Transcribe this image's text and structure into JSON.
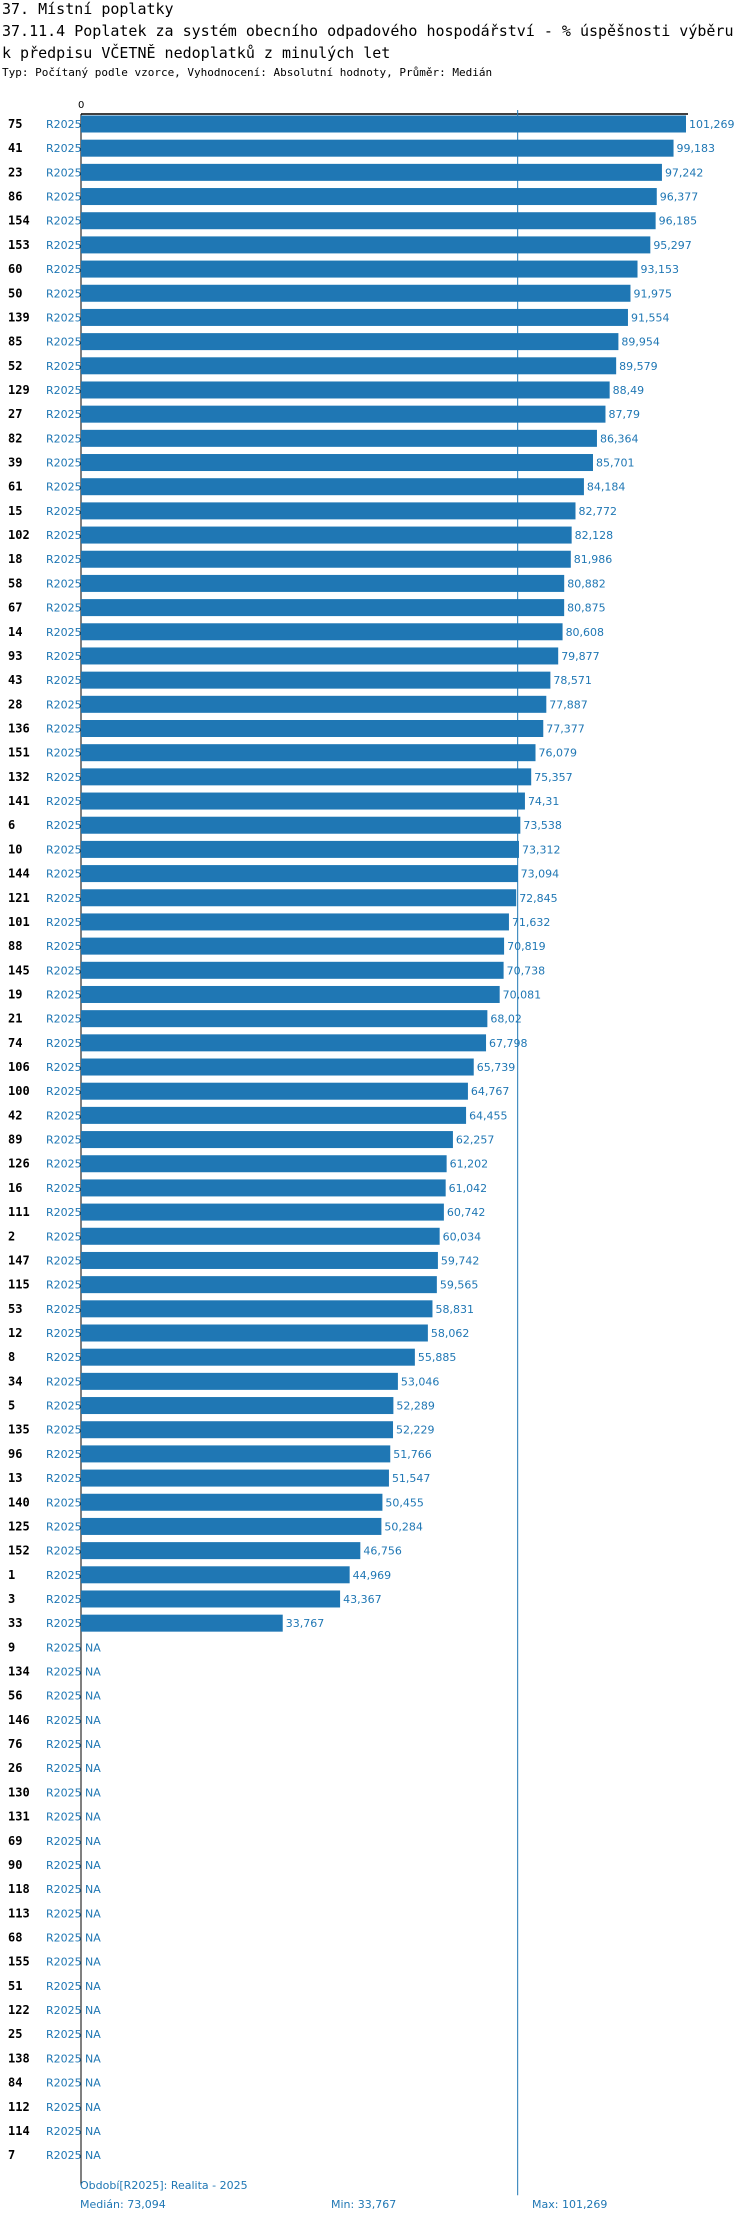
{
  "header": {
    "section": "37. Místní poplatky",
    "title": "37.11.4 Poplatek za systém obecního odpadového hospodářství  - % úspěšnosti výběru k předpisu VČETNĚ nedoplatků z minulých let",
    "subtitle": "Typ: Počítaný podle vzorce, Vyhodnocení: Absolutní hodnoty, Průměr: Medián"
  },
  "colors": {
    "bar": "#1f77b4",
    "text_blue": "#1f77b4",
    "axis": "#000000",
    "median_line": "#1f77b4"
  },
  "footer": {
    "period": "Období[R2025]: Realita - 2025",
    "median": "Medián: 73,094",
    "min": "Min: 33,767",
    "max": "Max: 101,269"
  },
  "chart_data": {
    "type": "bar",
    "orientation": "horizontal",
    "title": "37.11.4 Poplatek za systém obecního odpadového hospodářství  - % úspěšnosti výběru k předpisu VČETNĚ nedoplatků z minulých let",
    "axis_zero_label": "0",
    "xlim": [
      0,
      101.269
    ],
    "median": 73.094,
    "period_label": "R2025",
    "na_label": "NA",
    "rows": [
      {
        "id": "75",
        "value": 101.269,
        "label": "101,269"
      },
      {
        "id": "41",
        "value": 99.183,
        "label": "99,183"
      },
      {
        "id": "23",
        "value": 97.242,
        "label": "97,242"
      },
      {
        "id": "86",
        "value": 96.377,
        "label": "96,377"
      },
      {
        "id": "154",
        "value": 96.185,
        "label": "96,185"
      },
      {
        "id": "153",
        "value": 95.297,
        "label": "95,297"
      },
      {
        "id": "60",
        "value": 93.153,
        "label": "93,153"
      },
      {
        "id": "50",
        "value": 91.975,
        "label": "91,975"
      },
      {
        "id": "139",
        "value": 91.554,
        "label": "91,554"
      },
      {
        "id": "85",
        "value": 89.954,
        "label": "89,954"
      },
      {
        "id": "52",
        "value": 89.579,
        "label": "89,579"
      },
      {
        "id": "129",
        "value": 88.49,
        "label": "88,49"
      },
      {
        "id": "27",
        "value": 87.79,
        "label": "87,79"
      },
      {
        "id": "82",
        "value": 86.364,
        "label": "86,364"
      },
      {
        "id": "39",
        "value": 85.701,
        "label": "85,701"
      },
      {
        "id": "61",
        "value": 84.184,
        "label": "84,184"
      },
      {
        "id": "15",
        "value": 82.772,
        "label": "82,772"
      },
      {
        "id": "102",
        "value": 82.128,
        "label": "82,128"
      },
      {
        "id": "18",
        "value": 81.986,
        "label": "81,986"
      },
      {
        "id": "58",
        "value": 80.882,
        "label": "80,882"
      },
      {
        "id": "67",
        "value": 80.875,
        "label": "80,875"
      },
      {
        "id": "14",
        "value": 80.608,
        "label": "80,608"
      },
      {
        "id": "93",
        "value": 79.877,
        "label": "79,877"
      },
      {
        "id": "43",
        "value": 78.571,
        "label": "78,571"
      },
      {
        "id": "28",
        "value": 77.887,
        "label": "77,887"
      },
      {
        "id": "136",
        "value": 77.377,
        "label": "77,377"
      },
      {
        "id": "151",
        "value": 76.079,
        "label": "76,079"
      },
      {
        "id": "132",
        "value": 75.357,
        "label": "75,357"
      },
      {
        "id": "141",
        "value": 74.31,
        "label": "74,31"
      },
      {
        "id": "6",
        "value": 73.538,
        "label": "73,538"
      },
      {
        "id": "10",
        "value": 73.312,
        "label": "73,312"
      },
      {
        "id": "144",
        "value": 73.094,
        "label": "73,094"
      },
      {
        "id": "121",
        "value": 72.845,
        "label": "72,845"
      },
      {
        "id": "101",
        "value": 71.632,
        "label": "71,632"
      },
      {
        "id": "88",
        "value": 70.819,
        "label": "70,819"
      },
      {
        "id": "145",
        "value": 70.738,
        "label": "70,738"
      },
      {
        "id": "19",
        "value": 70.081,
        "label": "70,081"
      },
      {
        "id": "21",
        "value": 68.02,
        "label": "68,02"
      },
      {
        "id": "74",
        "value": 67.798,
        "label": "67,798"
      },
      {
        "id": "106",
        "value": 65.739,
        "label": "65,739"
      },
      {
        "id": "100",
        "value": 64.767,
        "label": "64,767"
      },
      {
        "id": "42",
        "value": 64.455,
        "label": "64,455"
      },
      {
        "id": "89",
        "value": 62.257,
        "label": "62,257"
      },
      {
        "id": "126",
        "value": 61.202,
        "label": "61,202"
      },
      {
        "id": "16",
        "value": 61.042,
        "label": "61,042"
      },
      {
        "id": "111",
        "value": 60.742,
        "label": "60,742"
      },
      {
        "id": "2",
        "value": 60.034,
        "label": "60,034"
      },
      {
        "id": "147",
        "value": 59.742,
        "label": "59,742"
      },
      {
        "id": "115",
        "value": 59.565,
        "label": "59,565"
      },
      {
        "id": "53",
        "value": 58.831,
        "label": "58,831"
      },
      {
        "id": "12",
        "value": 58.062,
        "label": "58,062"
      },
      {
        "id": "8",
        "value": 55.885,
        "label": "55,885"
      },
      {
        "id": "34",
        "value": 53.046,
        "label": "53,046"
      },
      {
        "id": "5",
        "value": 52.289,
        "label": "52,289"
      },
      {
        "id": "135",
        "value": 52.229,
        "label": "52,229"
      },
      {
        "id": "96",
        "value": 51.766,
        "label": "51,766"
      },
      {
        "id": "13",
        "value": 51.547,
        "label": "51,547"
      },
      {
        "id": "140",
        "value": 50.455,
        "label": "50,455"
      },
      {
        "id": "125",
        "value": 50.284,
        "label": "50,284"
      },
      {
        "id": "152",
        "value": 46.756,
        "label": "46,756"
      },
      {
        "id": "1",
        "value": 44.969,
        "label": "44,969"
      },
      {
        "id": "3",
        "value": 43.367,
        "label": "43,367"
      },
      {
        "id": "33",
        "value": 33.767,
        "label": "33,767"
      },
      {
        "id": "9",
        "value": null,
        "label": "NA"
      },
      {
        "id": "134",
        "value": null,
        "label": "NA"
      },
      {
        "id": "56",
        "value": null,
        "label": "NA"
      },
      {
        "id": "146",
        "value": null,
        "label": "NA"
      },
      {
        "id": "76",
        "value": null,
        "label": "NA"
      },
      {
        "id": "26",
        "value": null,
        "label": "NA"
      },
      {
        "id": "130",
        "value": null,
        "label": "NA"
      },
      {
        "id": "131",
        "value": null,
        "label": "NA"
      },
      {
        "id": "69",
        "value": null,
        "label": "NA"
      },
      {
        "id": "90",
        "value": null,
        "label": "NA"
      },
      {
        "id": "118",
        "value": null,
        "label": "NA"
      },
      {
        "id": "113",
        "value": null,
        "label": "NA"
      },
      {
        "id": "68",
        "value": null,
        "label": "NA"
      },
      {
        "id": "155",
        "value": null,
        "label": "NA"
      },
      {
        "id": "51",
        "value": null,
        "label": "NA"
      },
      {
        "id": "122",
        "value": null,
        "label": "NA"
      },
      {
        "id": "25",
        "value": null,
        "label": "NA"
      },
      {
        "id": "138",
        "value": null,
        "label": "NA"
      },
      {
        "id": "84",
        "value": null,
        "label": "NA"
      },
      {
        "id": "112",
        "value": null,
        "label": "NA"
      },
      {
        "id": "114",
        "value": null,
        "label": "NA"
      },
      {
        "id": "7",
        "value": null,
        "label": "NA"
      }
    ]
  }
}
